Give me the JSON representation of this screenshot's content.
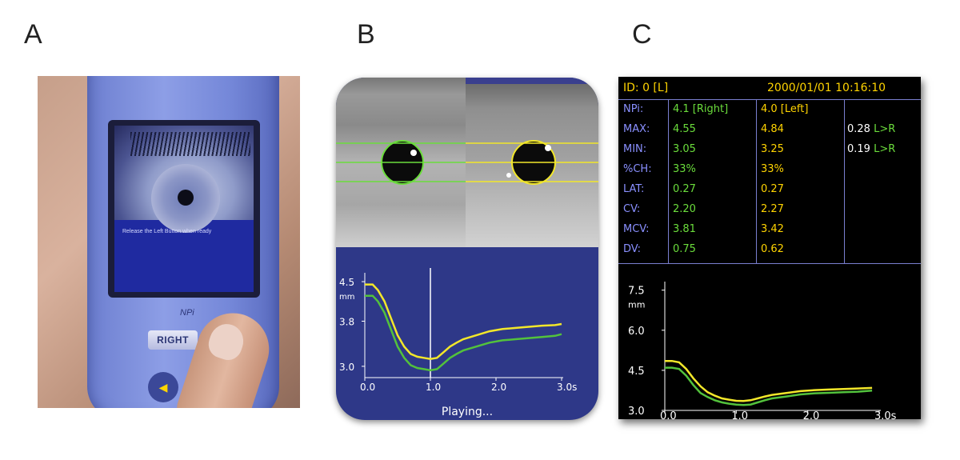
{
  "labels": {
    "a": "A",
    "b": "B",
    "c": "C"
  },
  "panel_a": {
    "screen_text": "Release the Left Button when ready",
    "brand": "NPi",
    "button_right": "RIGHT",
    "arrow": "◀"
  },
  "panel_b": {
    "status": "Playing...",
    "chart_data": {
      "type": "line",
      "xlim": [
        0.0,
        3.0
      ],
      "ylim": [
        2.8,
        4.6
      ],
      "x_ticks": [
        "0.0",
        "1.0",
        "2.0",
        "3.0s"
      ],
      "y_ticks": [
        "4.5",
        "3.8",
        "3.0"
      ],
      "y_unit": "mm",
      "cursor_x": 1.0,
      "colors": {
        "yellow": "#f2e72a",
        "green": "#53c23c",
        "axis": "#ffffff",
        "cursor": "#ffffff"
      },
      "series": [
        {
          "color": "yellow",
          "x": [
            0.0,
            0.12,
            0.2,
            0.3,
            0.4,
            0.5,
            0.6,
            0.7,
            0.8,
            0.9,
            1.0,
            1.1,
            1.2,
            1.3,
            1.4,
            1.5,
            1.7,
            1.9,
            2.1,
            2.3,
            2.5,
            2.7,
            2.9,
            3.0
          ],
          "y": [
            4.45,
            4.45,
            4.35,
            4.15,
            3.85,
            3.55,
            3.35,
            3.22,
            3.17,
            3.15,
            3.13,
            3.15,
            3.25,
            3.35,
            3.42,
            3.48,
            3.55,
            3.62,
            3.66,
            3.68,
            3.7,
            3.72,
            3.73,
            3.75
          ]
        },
        {
          "color": "green",
          "x": [
            0.0,
            0.12,
            0.2,
            0.3,
            0.4,
            0.5,
            0.6,
            0.7,
            0.8,
            0.9,
            1.0,
            1.1,
            1.2,
            1.3,
            1.4,
            1.5,
            1.7,
            1.9,
            2.1,
            2.3,
            2.5,
            2.7,
            2.9,
            3.0
          ],
          "y": [
            4.25,
            4.25,
            4.15,
            3.95,
            3.65,
            3.35,
            3.15,
            3.02,
            2.97,
            2.95,
            2.93,
            2.95,
            3.05,
            3.15,
            3.22,
            3.28,
            3.35,
            3.42,
            3.46,
            3.48,
            3.5,
            3.52,
            3.54,
            3.57
          ]
        }
      ]
    }
  },
  "panel_c": {
    "header_left": "ID: 0 [L]",
    "header_right": "2000/01/01 10:16:10",
    "rows": [
      {
        "label": "NPi:",
        "right": "4.1  [Right]",
        "left": "4.0  [Left]",
        "cmp": "",
        "cmp_dir": ""
      },
      {
        "label": "MAX:",
        "right": "4.55",
        "left": "4.84",
        "cmp": "0.28",
        "cmp_dir": "L>R"
      },
      {
        "label": "MIN:",
        "right": "3.05",
        "left": "3.25",
        "cmp": "0.19",
        "cmp_dir": "L>R"
      },
      {
        "label": "%CH:",
        "right": "33%",
        "left": "33%",
        "cmp": "",
        "cmp_dir": ""
      },
      {
        "label": "LAT:",
        "right": "0.27",
        "left": "0.27",
        "cmp": "",
        "cmp_dir": ""
      },
      {
        "label": "CV:",
        "right": "2.20",
        "left": "2.27",
        "cmp": "",
        "cmp_dir": ""
      },
      {
        "label": "MCV:",
        "right": "3.81",
        "left": "3.42",
        "cmp": "",
        "cmp_dir": ""
      },
      {
        "label": "DV:",
        "right": "0.75",
        "left": "0.62",
        "cmp": "",
        "cmp_dir": ""
      }
    ],
    "chart_data": {
      "type": "line",
      "xlim": [
        0.0,
        3.0
      ],
      "ylim": [
        3.0,
        7.7
      ],
      "x_ticks": [
        "0.0",
        "1.0",
        "2.0",
        "3.0s"
      ],
      "y_ticks": [
        "7.5",
        "6.0",
        "4.5",
        "3.0"
      ],
      "y_unit": "mm",
      "colors": {
        "yellow": "#f2e72a",
        "green": "#53c23c",
        "axis": "#ffffff"
      },
      "series": [
        {
          "color": "yellow",
          "x": [
            0.0,
            0.1,
            0.2,
            0.3,
            0.4,
            0.5,
            0.6,
            0.7,
            0.8,
            0.9,
            1.0,
            1.1,
            1.2,
            1.3,
            1.4,
            1.5,
            1.7,
            1.9,
            2.1,
            2.3,
            2.5,
            2.7,
            2.9
          ],
          "y": [
            4.85,
            4.85,
            4.8,
            4.55,
            4.2,
            3.9,
            3.68,
            3.55,
            3.45,
            3.4,
            3.36,
            3.35,
            3.38,
            3.45,
            3.52,
            3.58,
            3.65,
            3.72,
            3.76,
            3.78,
            3.8,
            3.82,
            3.84
          ]
        },
        {
          "color": "green",
          "x": [
            0.0,
            0.1,
            0.2,
            0.3,
            0.4,
            0.5,
            0.6,
            0.7,
            0.8,
            0.9,
            1.0,
            1.1,
            1.2,
            1.3,
            1.4,
            1.5,
            1.7,
            1.9,
            2.1,
            2.3,
            2.5,
            2.7,
            2.9
          ],
          "y": [
            4.6,
            4.6,
            4.55,
            4.3,
            3.95,
            3.65,
            3.5,
            3.38,
            3.3,
            3.25,
            3.22,
            3.2,
            3.22,
            3.3,
            3.38,
            3.45,
            3.52,
            3.6,
            3.64,
            3.66,
            3.68,
            3.7,
            3.74
          ]
        }
      ]
    }
  }
}
